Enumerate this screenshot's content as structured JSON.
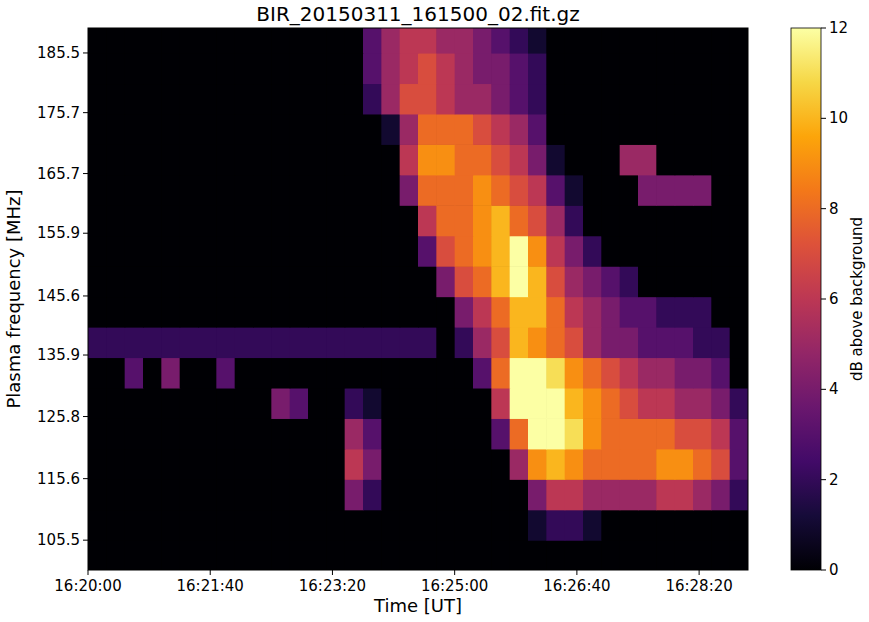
{
  "chart_data": {
    "type": "heatmap",
    "title": "BIR_20150311_161500_02.fit.gz",
    "x_label": "Time [UT]",
    "y_label": "Plasma frequency [MHz]",
    "colorbar_label": "dB above background",
    "color": "inferno",
    "xlim": [
      0,
      540
    ],
    "xticks": [
      {
        "value": 0,
        "label": "16:20:00"
      },
      {
        "value": 100,
        "label": "16:21:40"
      },
      {
        "value": 200,
        "label": "16:23:20"
      },
      {
        "value": 300,
        "label": "16:25:00"
      },
      {
        "value": 400,
        "label": "16:26:40"
      },
      {
        "value": 500,
        "label": "16:28:20"
      }
    ],
    "ylim": [
      100.6,
      189.6
    ],
    "yticks": [
      105.5,
      115.6,
      125.8,
      135.9,
      145.6,
      155.9,
      165.7,
      175.7,
      185.5
    ],
    "zlim": [
      0,
      12
    ],
    "zticks": [
      0,
      2,
      4,
      6,
      8,
      10,
      12
    ],
    "x_edges": [
      0,
      15,
      30,
      45,
      60,
      75,
      90,
      105,
      120,
      135,
      150,
      165,
      180,
      195,
      210,
      225,
      240,
      255,
      270,
      285,
      300,
      315,
      330,
      345,
      360,
      375,
      390,
      405,
      420,
      435,
      450,
      465,
      480,
      495,
      510,
      525,
      540
    ],
    "y_edges": [
      100.5,
      105.5,
      110.5,
      115.5,
      120.5,
      125.5,
      130.5,
      135.5,
      140.5,
      145.5,
      150.5,
      155.5,
      160.5,
      165.5,
      170.5,
      175.5,
      180.5,
      185.5,
      190.5
    ],
    "z": [
      [
        0,
        0,
        0,
        0,
        0,
        0,
        0,
        0,
        0,
        0,
        0,
        0,
        0,
        0,
        0,
        0,
        0,
        0,
        0,
        0,
        0,
        0,
        0,
        0,
        0,
        0,
        0,
        0,
        0,
        0,
        0,
        0,
        0,
        0,
        0,
        0
      ],
      [
        0,
        0,
        0,
        0,
        0,
        0,
        0,
        0,
        0,
        0,
        0,
        0,
        0,
        0,
        0,
        0,
        0,
        0,
        0,
        0,
        0,
        0,
        0,
        0,
        1,
        2,
        2,
        1,
        0,
        0,
        0,
        0,
        0,
        0,
        0,
        0
      ],
      [
        0,
        0,
        0,
        0,
        0,
        0,
        0,
        0,
        0,
        0,
        0,
        0,
        0,
        0,
        4,
        2,
        0,
        0,
        0,
        0,
        0,
        0,
        0,
        0,
        4,
        6,
        6,
        5,
        5,
        5,
        5,
        6,
        6,
        5,
        4,
        2
      ],
      [
        0,
        0,
        0,
        0,
        0,
        0,
        0,
        0,
        0,
        0,
        0,
        0,
        0,
        0,
        6,
        4,
        0,
        0,
        0,
        0,
        0,
        0,
        0,
        5,
        9,
        10,
        9,
        8,
        8,
        8,
        8,
        9,
        9,
        8,
        7,
        3
      ],
      [
        0,
        0,
        0,
        0,
        0,
        0,
        0,
        0,
        0,
        0,
        0,
        0,
        0,
        0,
        5,
        3,
        0,
        0,
        0,
        0,
        0,
        0,
        3,
        8,
        12,
        12,
        11,
        9,
        8,
        8,
        8,
        8,
        7,
        7,
        6,
        3
      ],
      [
        0,
        0,
        0,
        0,
        0,
        0,
        0,
        0,
        0,
        0,
        4,
        3,
        0,
        0,
        2,
        1,
        0,
        0,
        0,
        0,
        0,
        0,
        6,
        12,
        12,
        12,
        10,
        9,
        8,
        7,
        6,
        6,
        5,
        5,
        4,
        2
      ],
      [
        0,
        0,
        3,
        0,
        4,
        0,
        0,
        3,
        0,
        0,
        0,
        0,
        0,
        0,
        0,
        0,
        0,
        0,
        0,
        0,
        0,
        3,
        8,
        12,
        12,
        11,
        9,
        8,
        7,
        6,
        5,
        5,
        4,
        4,
        3,
        0
      ],
      [
        2,
        2,
        2,
        2,
        2,
        2,
        2,
        2,
        2,
        2,
        2,
        2,
        2,
        2,
        2,
        2,
        2,
        2,
        2,
        0,
        2,
        5,
        7,
        10,
        9,
        8,
        7,
        5,
        4,
        4,
        3,
        3,
        3,
        2,
        2,
        0
      ],
      [
        0,
        0,
        0,
        0,
        0,
        0,
        0,
        0,
        0,
        0,
        0,
        0,
        0,
        0,
        0,
        0,
        0,
        0,
        0,
        0,
        4,
        6,
        8,
        10,
        10,
        8,
        6,
        5,
        4,
        3,
        3,
        2,
        2,
        2,
        0,
        0
      ],
      [
        0,
        0,
        0,
        0,
        0,
        0,
        0,
        0,
        0,
        0,
        0,
        0,
        0,
        0,
        0,
        0,
        0,
        0,
        0,
        4,
        7,
        8,
        10,
        12,
        10,
        7,
        5,
        4,
        3,
        2,
        0,
        0,
        0,
        0,
        0,
        0
      ],
      [
        0,
        0,
        0,
        0,
        0,
        0,
        0,
        0,
        0,
        0,
        0,
        0,
        0,
        0,
        0,
        0,
        0,
        0,
        3,
        7,
        8,
        9,
        10,
        12,
        9,
        6,
        4,
        2,
        0,
        0,
        0,
        0,
        0,
        0,
        0,
        0
      ],
      [
        0,
        0,
        0,
        0,
        0,
        0,
        0,
        0,
        0,
        0,
        0,
        0,
        0,
        0,
        0,
        0,
        0,
        0,
        6,
        8,
        8,
        9,
        10,
        8,
        7,
        5,
        2,
        0,
        0,
        0,
        0,
        0,
        0,
        0,
        0,
        0
      ],
      [
        0,
        0,
        0,
        0,
        0,
        0,
        0,
        0,
        0,
        0,
        0,
        0,
        0,
        0,
        0,
        0,
        0,
        4,
        8,
        8,
        8,
        9,
        8,
        7,
        6,
        3,
        1,
        0,
        0,
        0,
        4,
        4,
        4,
        4,
        0,
        0
      ],
      [
        0,
        0,
        0,
        0,
        0,
        0,
        0,
        0,
        0,
        0,
        0,
        0,
        0,
        0,
        0,
        0,
        0,
        6,
        9,
        9,
        8,
        8,
        7,
        6,
        4,
        1,
        0,
        0,
        0,
        5,
        5,
        0,
        0,
        0,
        0,
        0
      ],
      [
        0,
        0,
        0,
        0,
        0,
        0,
        0,
        0,
        0,
        0,
        0,
        0,
        0,
        0,
        0,
        0,
        1,
        5,
        8,
        8,
        8,
        7,
        6,
        5,
        3,
        0,
        0,
        0,
        0,
        0,
        0,
        0,
        0,
        0,
        0,
        0
      ],
      [
        0,
        0,
        0,
        0,
        0,
        0,
        0,
        0,
        0,
        0,
        0,
        0,
        0,
        0,
        0,
        2,
        5,
        7,
        7,
        6,
        5,
        5,
        4,
        3,
        2,
        0,
        0,
        0,
        0,
        0,
        0,
        0,
        0,
        0,
        0,
        0
      ],
      [
        0,
        0,
        0,
        0,
        0,
        0,
        0,
        0,
        0,
        0,
        0,
        0,
        0,
        0,
        0,
        3,
        5,
        6,
        7,
        6,
        5,
        4,
        4,
        3,
        2,
        0,
        0,
        0,
        0,
        0,
        0,
        0,
        0,
        0,
        0,
        0
      ],
      [
        0,
        0,
        0,
        0,
        0,
        0,
        0,
        0,
        0,
        0,
        0,
        0,
        0,
        0,
        0,
        3,
        5,
        6,
        6,
        5,
        5,
        4,
        3,
        2,
        1,
        0,
        0,
        0,
        0,
        0,
        0,
        0,
        0,
        0,
        0,
        0
      ]
    ]
  }
}
